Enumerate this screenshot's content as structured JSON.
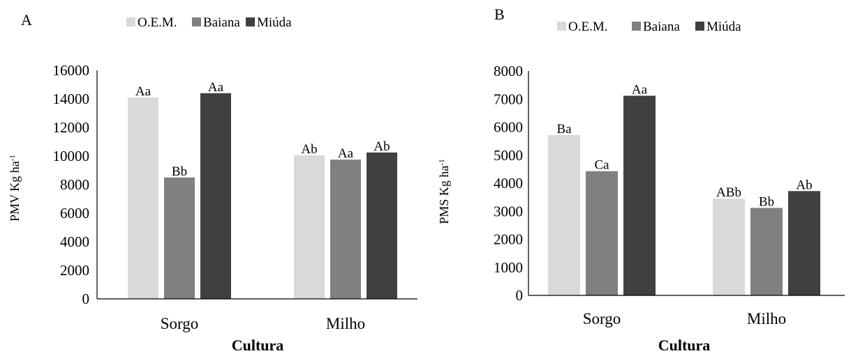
{
  "colors": {
    "oem": "#d9d9d9",
    "baiana": "#808080",
    "miuda": "#404040",
    "axis": "#000000"
  },
  "chart_data": [
    {
      "type": "bar",
      "panel_label": "A",
      "categories": [
        "Sorgo",
        "Milho"
      ],
      "series": [
        {
          "name": "O.E.M.",
          "values": [
            14100,
            10050
          ],
          "labels": [
            "Aa",
            "Ab"
          ]
        },
        {
          "name": "Baiana",
          "values": [
            8500,
            9750
          ],
          "labels": [
            "Bb",
            "Aa"
          ]
        },
        {
          "name": "Miúda",
          "values": [
            14400,
            10250
          ],
          "labels": [
            "Aa",
            "Ab"
          ]
        }
      ],
      "yticks": [
        "0",
        "2000",
        "4000",
        "6000",
        "8000",
        "10000",
        "12000",
        "14000",
        "16000"
      ],
      "ylim": [
        0,
        16000
      ],
      "ylabel": "PMV Kg ha",
      "ylabel_sup": "-1",
      "xlabel": "Cultura",
      "legend_position": "top"
    },
    {
      "type": "bar",
      "panel_label": "B",
      "categories": [
        "Sorgo",
        "Milho"
      ],
      "series": [
        {
          "name": "O.E.M.",
          "values": [
            5720,
            3450
          ],
          "labels": [
            "Ba",
            "ABb"
          ]
        },
        {
          "name": "Baiana",
          "values": [
            4430,
            3120
          ],
          "labels": [
            "Ca",
            "Bb"
          ]
        },
        {
          "name": "Miúda",
          "values": [
            7120,
            3720
          ],
          "labels": [
            "Aa",
            "Ab"
          ]
        }
      ],
      "yticks": [
        "0",
        "1000",
        "2000",
        "3000",
        "4000",
        "5000",
        "6000",
        "7000",
        "8000"
      ],
      "ylim": [
        0,
        8000
      ],
      "ylabel": "PMS Kg ha",
      "ylabel_sup": "-1",
      "xlabel": "Cultura",
      "legend_position": "top"
    }
  ]
}
